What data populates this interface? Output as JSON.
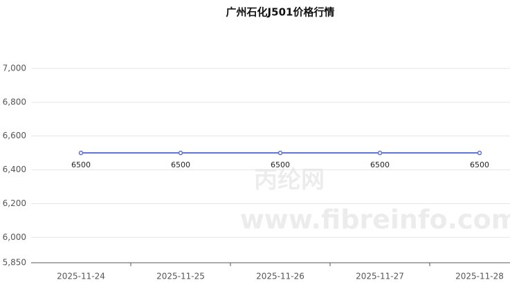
{
  "chart_data": {
    "type": "line",
    "title": "广州石化J501价格行情",
    "categories": [
      "2025-11-24",
      "2025-11-25",
      "2025-11-26",
      "2025-11-27",
      "2025-11-28"
    ],
    "series": [
      {
        "name": "广州石化J501",
        "color": "#5b6fd6",
        "values": [
          6500,
          6500,
          6500,
          6500,
          6500
        ],
        "value_labels": [
          "6500",
          "6500",
          "6500",
          "6500",
          "6500"
        ]
      }
    ],
    "ylim": [
      5850,
      7000
    ],
    "yticks": [
      {
        "value": 5850,
        "label": "5,850"
      },
      {
        "value": 6000,
        "label": "6,000"
      },
      {
        "value": 6200,
        "label": "6,200"
      },
      {
        "value": 6400,
        "label": "6,400"
      },
      {
        "value": 6600,
        "label": "6,600"
      },
      {
        "value": 6800,
        "label": "6,800"
      },
      {
        "value": 7000,
        "label": "7,000"
      }
    ],
    "grid": true,
    "watermark": [
      "丙纶网",
      "www.fibreinfo.com"
    ]
  }
}
